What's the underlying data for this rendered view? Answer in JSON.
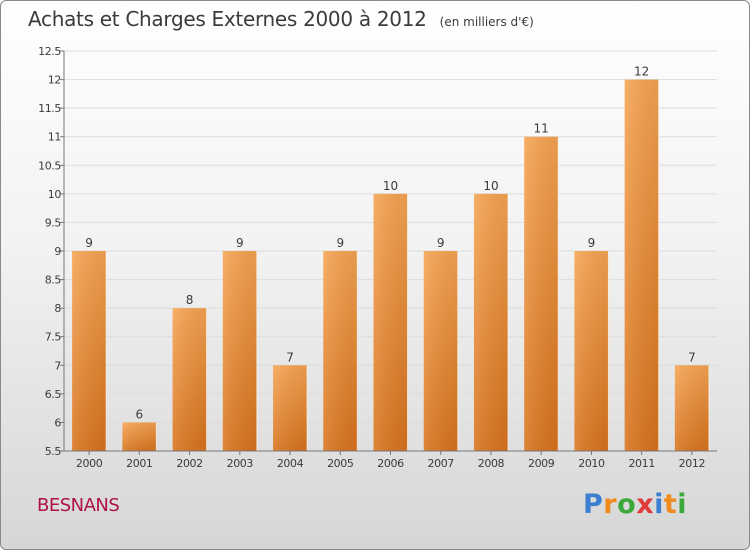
{
  "header": {
    "title": "Achats et Charges Externes 2000 à 2012",
    "subtitle": "(en milliers d'€)"
  },
  "footer": {
    "commune": "BESNANS",
    "logo_text": "Proxiti",
    "logo_colors": [
      "#3a7fd0",
      "#f08a1c",
      "#3aa83a",
      "#e03a3a",
      "#3a7fd0",
      "#f08a1c",
      "#3aa83a"
    ]
  },
  "colors": {
    "bar_top": "#f6a452",
    "bar_bottom": "#d8731c",
    "commune": "#b0104a",
    "text": "#3b3b3b"
  },
  "chart_data": {
    "type": "bar",
    "title": "Achats et Charges Externes 2000 à 2012",
    "subtitle": "(en milliers d'€)",
    "categories": [
      "2000",
      "2001",
      "2002",
      "2003",
      "2004",
      "2005",
      "2006",
      "2007",
      "2008",
      "2009",
      "2010",
      "2011",
      "2012"
    ],
    "values": [
      9,
      6,
      8,
      9,
      7,
      9,
      10,
      9,
      10,
      11,
      9,
      12,
      7
    ],
    "value_labels": [
      "9",
      "6",
      "8",
      "9",
      "7",
      "9",
      "10",
      "9",
      "10",
      "11",
      "9",
      "12",
      "7"
    ],
    "ylim": [
      5.5,
      12.5
    ],
    "yticks": [
      5.5,
      6,
      6.5,
      7,
      7.5,
      8,
      8.5,
      9,
      9.5,
      10,
      10.5,
      11,
      11.5,
      12,
      12.5
    ],
    "ytick_labels": [
      "5.5",
      "6",
      "6.5",
      "7",
      "7.5",
      "8",
      "8.5",
      "9",
      "9.5",
      "10",
      "10.5",
      "11",
      "11.5",
      "12",
      "12.5"
    ],
    "grid": true,
    "xlabel": "",
    "ylabel": ""
  }
}
